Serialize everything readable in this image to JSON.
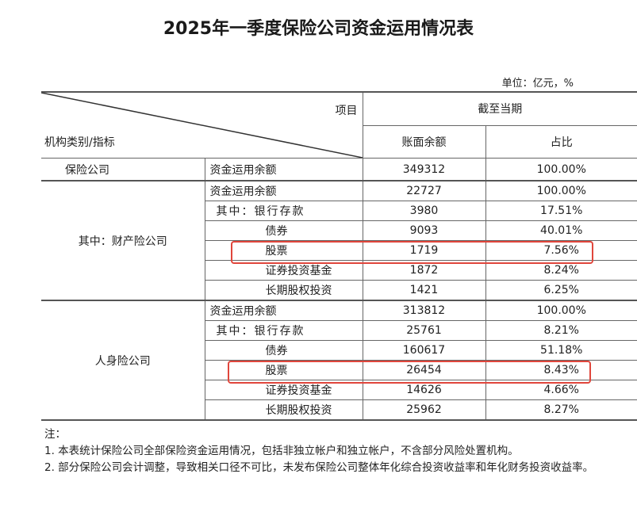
{
  "title": "2025年一季度保险公司资金运用情况表",
  "unit": "单位：亿元，%",
  "header": {
    "item": "项目",
    "category": "机构类别/指标",
    "period": "截至当期",
    "balance": "账面余额",
    "share": "占比"
  },
  "groups": [
    {
      "name": "保险公司",
      "rows": [
        {
          "label": "资金运用余额",
          "balance": "349312",
          "share": "100.00%"
        }
      ]
    },
    {
      "name": "其中：财产险公司",
      "rows": [
        {
          "label": "资金运用余额",
          "balance": "22727",
          "share": "100.00%"
        },
        {
          "label": "其中：银行存款",
          "balance": "3980",
          "share": "17.51%"
        },
        {
          "label": "债券",
          "balance": "9093",
          "share": "40.01%"
        },
        {
          "label": "股票",
          "balance": "1719",
          "share": "7.56%",
          "highlighted": true
        },
        {
          "label": "证券投资基金",
          "balance": "1872",
          "share": "8.24%"
        },
        {
          "label": "长期股权投资",
          "balance": "1421",
          "share": "6.25%"
        }
      ]
    },
    {
      "name": "人身险公司",
      "rows": [
        {
          "label": "资金运用余额",
          "balance": "313812",
          "share": "100.00%"
        },
        {
          "label": "其中：银行存款",
          "balance": "25761",
          "share": "8.21%"
        },
        {
          "label": "债券",
          "balance": "160617",
          "share": "51.18%"
        },
        {
          "label": "股票",
          "balance": "26454",
          "share": "8.43%",
          "highlighted": true
        },
        {
          "label": "证券投资基金",
          "balance": "14626",
          "share": "4.66%"
        },
        {
          "label": "长期股权投资",
          "balance": "25962",
          "share": "8.27%"
        }
      ]
    }
  ],
  "notes": {
    "heading": "注：",
    "items": [
      "1. 本表统计保险公司全部保险资金运用情况，包括非独立帐户和独立帐户，不含部分风险处置机构。",
      "2. 部分保险公司会计调整，导致相关口径不可比，未发布保险公司整体年化综合投资收益率和年化财务投资收益率。"
    ]
  },
  "highlight_color": "#e0463c"
}
